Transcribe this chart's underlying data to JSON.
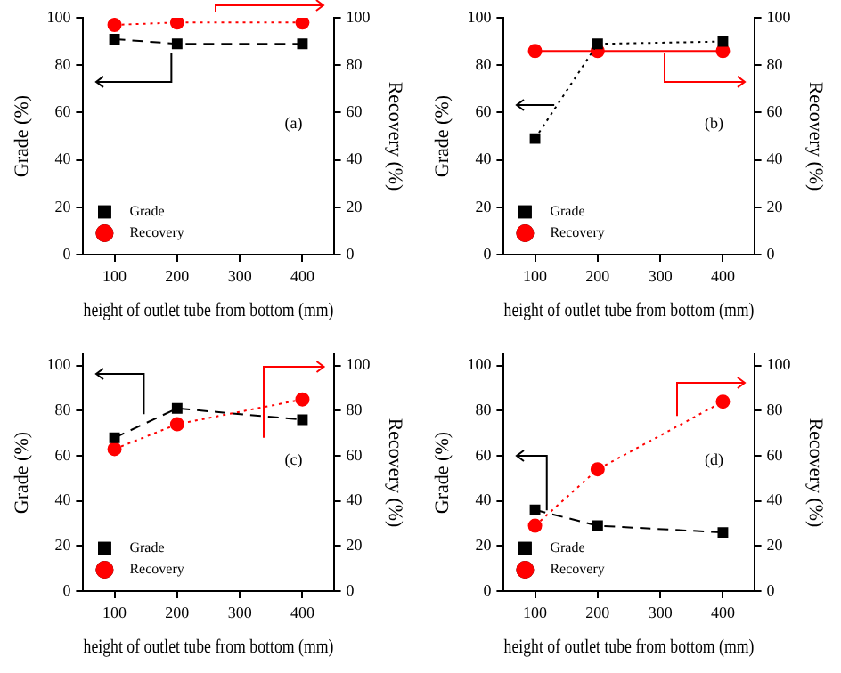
{
  "chart_data": [
    {
      "type": "line",
      "x": [
        100,
        200,
        400
      ],
      "xlim": [
        50,
        450
      ],
      "xticks": [
        100,
        200,
        300,
        400
      ],
      "ylim": [
        0,
        100
      ],
      "yticks": [
        0,
        20,
        40,
        60,
        80,
        100
      ],
      "y2lim": [
        0,
        100
      ],
      "y2ticks": [
        0,
        20,
        40,
        60,
        80,
        100
      ],
      "xlabel": "height of outlet tube from bottom (mm)",
      "ylabel": "Grade (%)",
      "y2label": "Recovery (%)",
      "annotations": [
        "(a)"
      ],
      "legend": "bottom left",
      "grid": false,
      "series": [
        {
          "name": "Grade",
          "color": "#000000",
          "values": [
            91,
            89,
            89
          ],
          "marker": "square",
          "line_style": "dashed"
        },
        {
          "name": "Recovery",
          "color": "#ff0000",
          "values": [
            97,
            98,
            98
          ],
          "marker": "circle",
          "line_style": "dotted",
          "axis": "y2"
        }
      ]
    },
    {
      "type": "line",
      "x": [
        100,
        200,
        400
      ],
      "xlim": [
        50,
        450
      ],
      "xticks": [
        100,
        200,
        300,
        400
      ],
      "ylim": [
        0,
        100
      ],
      "yticks": [
        0,
        20,
        40,
        60,
        80,
        100
      ],
      "y2lim": [
        0,
        100
      ],
      "y2ticks": [
        0,
        20,
        40,
        60,
        80,
        100
      ],
      "xlabel": "height of outlet tube from bottom (mm)",
      "ylabel": "Grade (%)",
      "y2label": "Recovery (%)",
      "annotations": [
        "(b)"
      ],
      "legend": "bottom left",
      "grid": false,
      "series": [
        {
          "name": "Grade",
          "color": "#000000",
          "values": [
            49,
            89,
            90
          ],
          "marker": "square",
          "line_style": "dotted"
        },
        {
          "name": "Recovery",
          "color": "#ff0000",
          "values": [
            86,
            86,
            86
          ],
          "marker": "circle",
          "line_style": "solid",
          "axis": "y2"
        }
      ]
    },
    {
      "type": "line",
      "x": [
        100,
        200,
        400
      ],
      "xlim": [
        50,
        450
      ],
      "xticks": [
        100,
        200,
        300,
        400
      ],
      "ylim": [
        0,
        105
      ],
      "yticks": [
        0,
        20,
        40,
        60,
        80,
        100
      ],
      "y2lim": [
        0,
        105
      ],
      "y2ticks": [
        0,
        20,
        40,
        60,
        80,
        100
      ],
      "xlabel": "height of outlet tube from bottom (mm)",
      "ylabel": "Grade (%)",
      "y2label": "Recovery (%)",
      "annotations": [
        "(c)"
      ],
      "legend": "bottom left",
      "grid": false,
      "series": [
        {
          "name": "Grade",
          "color": "#000000",
          "values": [
            68,
            81,
            76
          ],
          "marker": "square",
          "line_style": "dashed"
        },
        {
          "name": "Recovery",
          "color": "#ff0000",
          "values": [
            63,
            74,
            85
          ],
          "marker": "circle",
          "line_style": "dotted",
          "axis": "y2"
        }
      ]
    },
    {
      "type": "line",
      "x": [
        100,
        200,
        400
      ],
      "xlim": [
        50,
        450
      ],
      "xticks": [
        100,
        200,
        300,
        400
      ],
      "ylim": [
        0,
        105
      ],
      "yticks": [
        0,
        20,
        40,
        60,
        80,
        100
      ],
      "y2lim": [
        0,
        105
      ],
      "y2ticks": [
        0,
        20,
        40,
        60,
        80,
        100
      ],
      "xlabel": "height of outlet tube from bottom (mm)",
      "ylabel": "Grade (%)",
      "y2label": "Recovery (%)",
      "annotations": [
        "(d)"
      ],
      "legend": "bottom left",
      "grid": false,
      "series": [
        {
          "name": "Grade",
          "color": "#000000",
          "values": [
            36,
            29,
            26
          ],
          "marker": "square",
          "line_style": "dashed"
        },
        {
          "name": "Recovery",
          "color": "#ff0000",
          "values": [
            29,
            54,
            84
          ],
          "marker": "circle",
          "line_style": "dotted",
          "axis": "y2"
        }
      ]
    }
  ]
}
